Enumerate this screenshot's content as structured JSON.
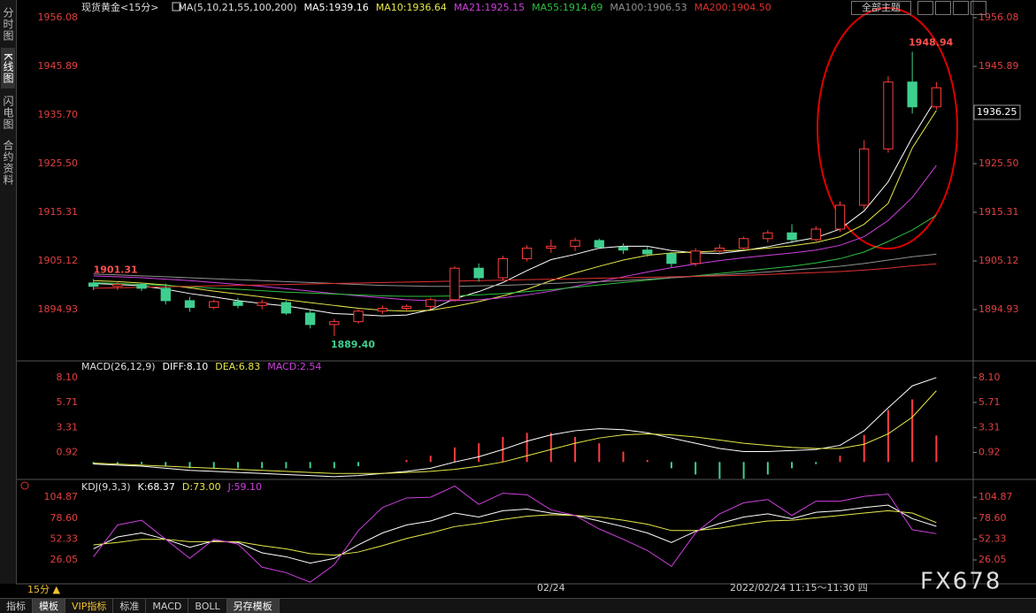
{
  "chart_data": [
    {
      "type": "candlestick",
      "title": "现货黄金<15分>",
      "indicator": "MA(5,10,21,55,100,200)",
      "categories": [
        null,
        null,
        null,
        null,
        null,
        null,
        null,
        null,
        null,
        null,
        null,
        null,
        null,
        null,
        null,
        null,
        null,
        null,
        null,
        "02/24",
        null,
        null,
        null,
        null,
        null,
        null,
        null,
        null,
        null,
        null,
        null,
        null,
        null,
        null,
        null,
        null
      ],
      "open": [
        1900.5,
        1899.8,
        1900.2,
        1899.4,
        1896.8,
        1895.4,
        1896.6,
        1895.8,
        1896.4,
        1894.2,
        1891.8,
        1892.4,
        1894.6,
        1895.2,
        1895.6,
        1897,
        1903.6,
        1901.6,
        1905.6,
        1907.8,
        1908.2,
        1909.4,
        1908,
        1907.4,
        1906.6,
        1904.6,
        1907.2,
        1907.8,
        1909.8,
        1911,
        1909.6,
        1911.8,
        1916.8,
        1928.6,
        1942.6,
        1937.4
      ],
      "high": [
        1901.31,
        1900.8,
        1900.6,
        1900.4,
        1897.6,
        1897,
        1897.4,
        1897,
        1896.8,
        1894.8,
        1893,
        1895,
        1895.8,
        1896,
        1897.4,
        1904,
        1904.6,
        1906.2,
        1908.4,
        1909.6,
        1910,
        1909.8,
        1908.8,
        1908.2,
        1907,
        1907.8,
        1908.6,
        1910.2,
        1911.6,
        1912.8,
        1912.4,
        1917.6,
        1930.4,
        1943.8,
        1948.94,
        1942.6
      ],
      "low": [
        1899,
        1899,
        1898.8,
        1896,
        1894.5,
        1895,
        1895.2,
        1895,
        1893.8,
        1891,
        1889.4,
        1892,
        1894,
        1894.8,
        1895,
        1896.6,
        1900.8,
        1901,
        1905,
        1906.8,
        1907.2,
        1907.6,
        1906.6,
        1906,
        1903.8,
        1904,
        1906.4,
        1907.4,
        1909,
        1908.8,
        1909.2,
        1911.2,
        1916,
        1927.8,
        1936,
        1936.8
      ],
      "close": [
        1899.8,
        1900.2,
        1899.4,
        1896.8,
        1895.4,
        1896.6,
        1895.8,
        1896.4,
        1894.2,
        1891.8,
        1892.4,
        1894.6,
        1895.2,
        1895.6,
        1897,
        1903.6,
        1901.6,
        1905.6,
        1907.8,
        1908.2,
        1909.4,
        1908,
        1907.4,
        1906.6,
        1904.6,
        1907.2,
        1907.8,
        1909.8,
        1911,
        1909.6,
        1911.8,
        1916.8,
        1928.6,
        1942.6,
        1937.4,
        1941.4
      ],
      "up_color": "#ff3c3c",
      "down_color": "#3ecf8e",
      "series": [
        {
          "name": "MA5:1939.16",
          "color": "#ffffff",
          "values": [
            1900.4,
            1900.2,
            1899.9,
            1899.2,
            1898.3,
            1897.6,
            1896.8,
            1896.2,
            1895.7,
            1894.9,
            1894.1,
            1893.9,
            1893.6,
            1893.8,
            1894.9,
            1897.2,
            1898.7,
            1900.6,
            1903.1,
            1905.4,
            1906.5,
            1907.8,
            1908.2,
            1908.2,
            1907.3,
            1906.8,
            1906.7,
            1907.3,
            1908.1,
            1909.1,
            1910,
            1911.8,
            1915.6,
            1921.7,
            1931,
            1939.16
          ]
        },
        {
          "name": "MA10:1936.64",
          "color": "#e8e84a",
          "values": [
            1901,
            1900.8,
            1900.5,
            1900.1,
            1899.5,
            1898.8,
            1898.2,
            1897.6,
            1897,
            1896.4,
            1895.8,
            1895.2,
            1894.8,
            1894.6,
            1894.8,
            1895.6,
            1896.6,
            1897.8,
            1899.2,
            1901,
            1902.6,
            1904,
            1905.3,
            1906.3,
            1906.8,
            1907,
            1907.2,
            1907.4,
            1907.8,
            1908.3,
            1909,
            1910.2,
            1912.8,
            1917.2,
            1928.8,
            1936.64
          ]
        },
        {
          "name": "MA21:1925.15",
          "color": "#d040e0",
          "values": [
            1902,
            1901.8,
            1901.6,
            1901.3,
            1901,
            1900.6,
            1900.2,
            1899.8,
            1899.3,
            1898.8,
            1898.3,
            1897.8,
            1897.4,
            1897,
            1896.8,
            1896.8,
            1897,
            1897.4,
            1898,
            1898.8,
            1899.8,
            1900.8,
            1901.8,
            1902.8,
            1903.7,
            1904.5,
            1905.2,
            1905.8,
            1906.3,
            1906.8,
            1907.4,
            1908.4,
            1910.2,
            1913.6,
            1918.4,
            1925.15
          ]
        },
        {
          "name": "MA55:1914.69",
          "color": "#30c040",
          "values": [
            1900.6,
            1900.4,
            1900.2,
            1900,
            1899.7,
            1899.4,
            1899.2,
            1898.9,
            1898.6,
            1898.4,
            1898.2,
            1898,
            1897.8,
            1897.7,
            1897.7,
            1897.8,
            1898,
            1898.3,
            1898.7,
            1899.1,
            1899.6,
            1900.1,
            1900.6,
            1901.1,
            1901.6,
            1902,
            1902.5,
            1903,
            1903.5,
            1904,
            1904.7,
            1905.6,
            1907,
            1909.2,
            1911.6,
            1914.69
          ]
        },
        {
          "name": "MA100:1906.53",
          "color": "#909090",
          "values": [
            1902.4,
            1902.2,
            1902,
            1901.8,
            1901.6,
            1901.4,
            1901.2,
            1901,
            1900.8,
            1900.6,
            1900.4,
            1900.2,
            1900,
            1899.9,
            1899.8,
            1899.8,
            1899.9,
            1900,
            1900.2,
            1900.4,
            1900.6,
            1900.8,
            1901,
            1901.3,
            1901.6,
            1901.9,
            1902.2,
            1902.5,
            1902.8,
            1903.2,
            1903.6,
            1904,
            1904.6,
            1905.3,
            1906,
            1906.53
          ]
        },
        {
          "name": "MA200:1904.50",
          "color": "#e03030",
          "values": [
            1899.4,
            1899.5,
            1899.6,
            1899.7,
            1899.8,
            1899.9,
            1900,
            1900.1,
            1900.2,
            1900.3,
            1900.4,
            1900.5,
            1900.6,
            1900.7,
            1900.8,
            1900.9,
            1901,
            1901.1,
            1901.2,
            1901.3,
            1901.4,
            1901.5,
            1901.6,
            1901.7,
            1901.8,
            1901.9,
            1902,
            1902.1,
            1902.3,
            1902.5,
            1902.7,
            1902.9,
            1903.2,
            1903.6,
            1904.1,
            1904.5
          ]
        }
      ],
      "annotations": [
        1901.31,
        1948.94,
        {
          "value": 1889.4,
          "label": "1889.40"
        }
      ],
      "last_price": 1936.25,
      "ylim": [
        1884.74,
        1957.93
      ],
      "yticks": [
        1956.08,
        1945.89,
        {
          "value": 1935.7,
          "label": "1935.70"
        },
        {
          "value": 1925.5,
          "label": "1925.50"
        },
        1915.31,
        1905.12,
        1894.93
      ]
    },
    {
      "type": "macd",
      "title": "MACD(26,12,9)",
      "bars": {
        "name": "MACD:2.54",
        "up_color": "#ff3c3c",
        "down_color": "#3ecf8e",
        "values": [
          -0.2,
          -0.2,
          -0.2,
          -0.4,
          -0.6,
          -0.6,
          -0.6,
          -0.6,
          -0.6,
          -0.6,
          -0.6,
          -0.4,
          0,
          0.2,
          0.6,
          1.4,
          1.8,
          2.4,
          2.8,
          2.8,
          2.4,
          1.8,
          1,
          0.2,
          -0.6,
          -1.2,
          -1.6,
          -1.6,
          -1.2,
          -0.6,
          -0.2,
          0.6,
          2.6,
          5,
          6,
          2.54
        ]
      },
      "series": [
        {
          "name": "DIFF:8.10",
          "color": "#ffffff",
          "values": [
            -0.2,
            -0.3,
            -0.4,
            -0.6,
            -0.8,
            -0.9,
            -1,
            -1.1,
            -1.2,
            -1.3,
            -1.4,
            -1.3,
            -1.1,
            -0.9,
            -0.6,
            0,
            0.5,
            1.2,
            2,
            2.6,
            3,
            3.2,
            3.1,
            2.8,
            2.3,
            1.8,
            1.3,
            1,
            1,
            1.1,
            1.2,
            1.6,
            3,
            5.2,
            7.3,
            8.1
          ]
        },
        {
          "name": "DEA:6.83",
          "color": "#e8e84a",
          "values": [
            -0.1,
            -0.2,
            -0.3,
            -0.4,
            -0.5,
            -0.6,
            -0.7,
            -0.8,
            -0.9,
            -1,
            -1.1,
            -1.1,
            -1.1,
            -1,
            -0.9,
            -0.7,
            -0.4,
            0,
            0.6,
            1.2,
            1.8,
            2.3,
            2.6,
            2.7,
            2.6,
            2.4,
            2.1,
            1.8,
            1.6,
            1.4,
            1.3,
            1.3,
            1.7,
            2.7,
            4.3,
            6.83
          ]
        }
      ],
      "ylim": [
        -1.5,
        9.1
      ],
      "yticks": [
        {
          "value": 8.1,
          "label": "8.10"
        },
        5.71,
        3.31,
        0.92
      ]
    },
    {
      "type": "line",
      "title": "KDJ(9,3,3)",
      "series": [
        {
          "name": "K:68.37",
          "color": "#ffffff",
          "values": [
            40,
            55,
            60,
            52,
            42,
            50,
            48,
            35,
            30,
            22,
            28,
            45,
            60,
            70,
            75,
            85,
            80,
            88,
            90,
            85,
            82,
            75,
            68,
            60,
            48,
            62,
            72,
            80,
            84,
            78,
            86,
            88,
            92,
            95,
            78,
            68.37
          ]
        },
        {
          "name": "D:73.00",
          "color": "#e8e84a",
          "values": [
            45,
            48,
            52,
            52,
            49,
            49,
            49,
            44,
            40,
            34,
            32,
            36,
            44,
            53,
            60,
            68,
            72,
            77,
            81,
            83,
            82,
            80,
            76,
            71,
            63,
            63,
            66,
            71,
            75,
            76,
            79,
            82,
            85,
            88,
            85,
            73
          ]
        },
        {
          "name": "J:59.10",
          "color": "#d040e0",
          "values": [
            30,
            70,
            76,
            52,
            28,
            52,
            46,
            17,
            10,
            -2,
            20,
            63,
            92,
            104,
            105,
            119,
            96,
            110,
            108,
            89,
            82,
            65,
            52,
            38,
            18,
            60,
            84,
            98,
            102,
            82,
            100,
            100,
            106,
            109,
            64,
            59.1
          ]
        }
      ],
      "ylim": [
        -4,
        124
      ],
      "yticks": [
        104.87,
        {
          "value": 78.6,
          "label": "78.60"
        },
        52.33,
        26.05
      ]
    }
  ],
  "ui": {
    "sidebar_tabs": [
      "分时图",
      "K线图",
      "闪电图",
      "合约资料"
    ],
    "theme_button": "全部主题",
    "timeframe": "15分 ▲",
    "crosshair_time": "2022/02/24 11:15～11:30 四",
    "watermark": "FX678",
    "bottom_tabs": [
      "指标",
      "模板",
      "VIP指标",
      "标准",
      "MACD",
      "BOLL",
      "另存模板"
    ]
  }
}
